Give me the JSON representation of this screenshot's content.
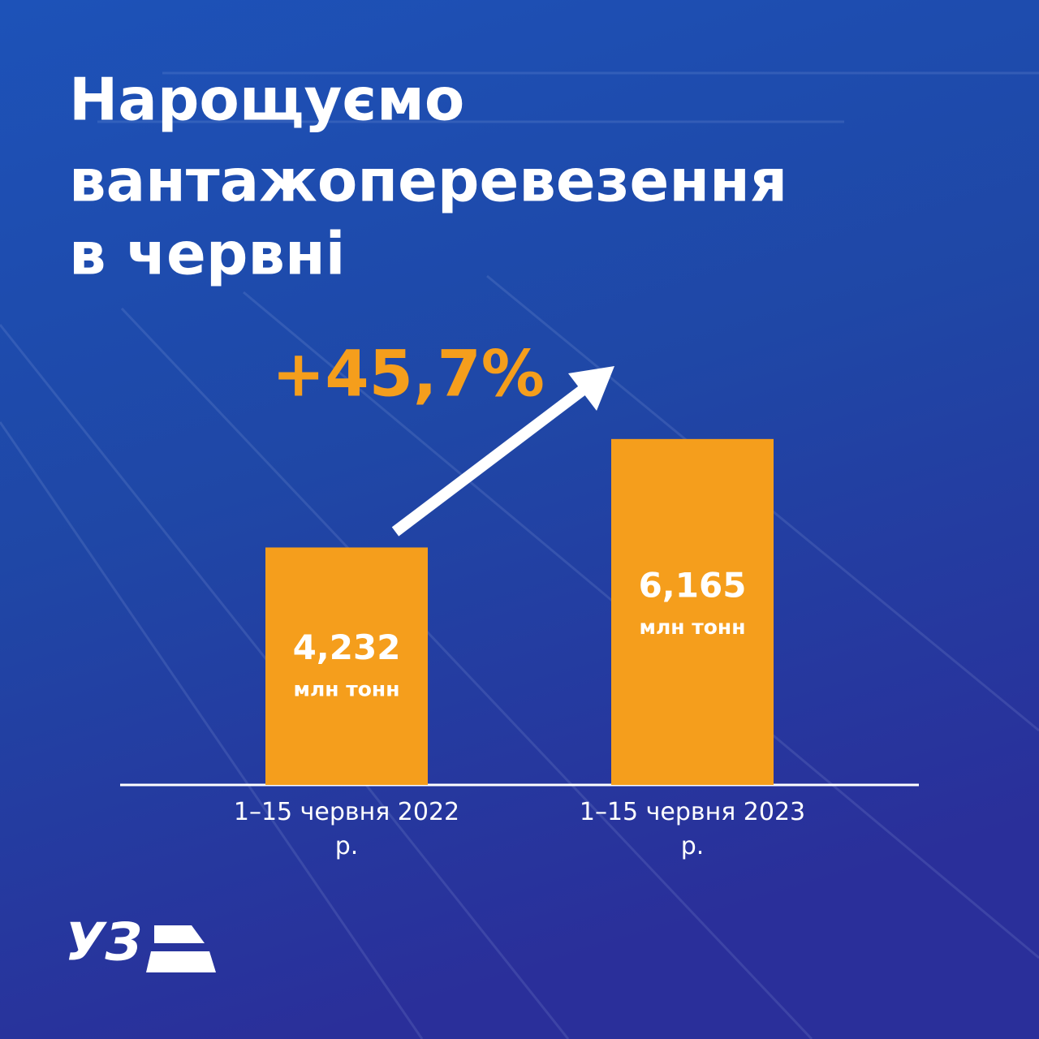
{
  "chart_data": {
    "type": "bar",
    "title_lines": [
      "Нарощуємо",
      "вантажоперевезення",
      "в червні"
    ],
    "annotation": "+45,7%",
    "categories": [
      "1–15 червня 2022 р.",
      "1–15 червня 2023 р."
    ],
    "values": [
      4.232,
      6.165
    ],
    "value_labels": [
      "4,232",
      "6,165"
    ],
    "unit_label": "млн тонн",
    "color": "#f59e1c",
    "ylim": [
      0,
      8
    ],
    "logo": "УЗ"
  }
}
